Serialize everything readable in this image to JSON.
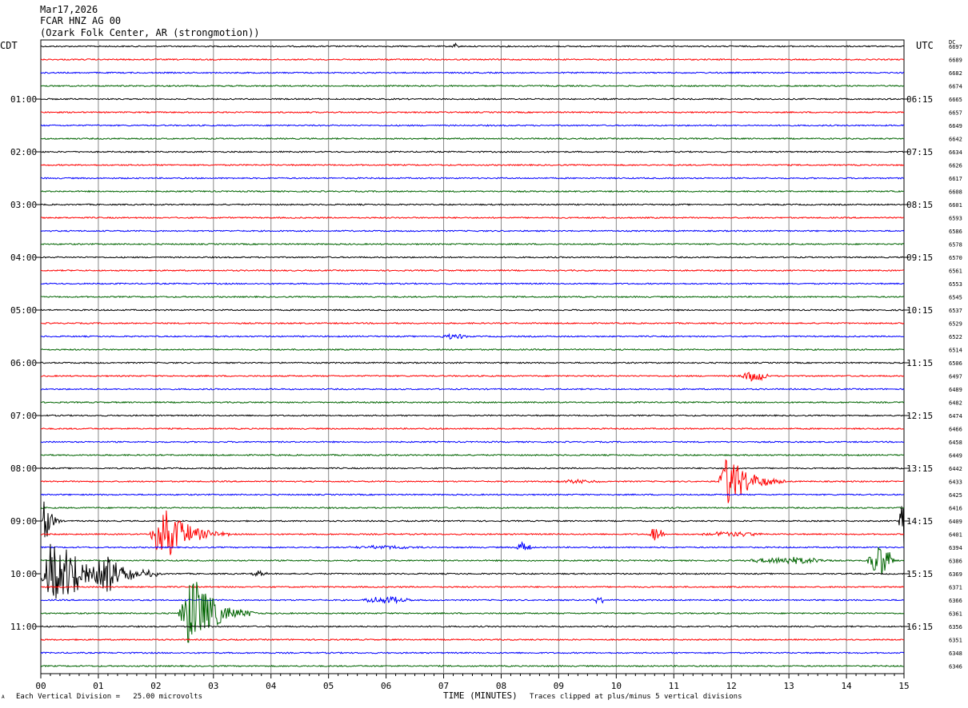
{
  "header": {
    "date": "Mar17,2026",
    "channel": "FCAR HNZ AG 00",
    "station": "(Ozark Folk Center, AR (strongmotion))"
  },
  "tz_left": "CDT",
  "tz_right": "UTC",
  "dc_label": "DC",
  "footer": {
    "scale_note": "Each Vertical Division =   25.00 microvolts",
    "clip_note": "Traces clipped at plus/minus 5 vertical divisions",
    "corner_mark": "A"
  },
  "chart_data": {
    "type": "line",
    "title": "",
    "xlabel": "TIME (MINUTES)",
    "ylabel": "",
    "xlim": [
      0,
      15
    ],
    "x_ticks": [
      "00",
      "01",
      "02",
      "03",
      "04",
      "05",
      "06",
      "07",
      "08",
      "09",
      "10",
      "11",
      "12",
      "13",
      "14",
      "15"
    ],
    "trace_colors": [
      "#000000",
      "#ff0000",
      "#0000ff",
      "#006400"
    ],
    "num_traces": 48,
    "minutes_per_trace": 15,
    "left_time_labels": [
      "01:00",
      "02:00",
      "03:00",
      "04:00",
      "05:00",
      "06:00",
      "07:00",
      "08:00",
      "09:00",
      "10:00",
      "11:00"
    ],
    "right_time_labels": [
      "06:15",
      "07:15",
      "08:15",
      "09:15",
      "10:15",
      "11:15",
      "12:15",
      "13:15",
      "14:15",
      "15:15",
      "16:15"
    ],
    "dc_offsets": [
      "6697",
      "6689",
      "6682",
      "6674",
      "6665",
      "6657",
      "6649",
      "6642",
      "6634",
      "6626",
      "6617",
      "6608",
      "6601",
      "6593",
      "6586",
      "6578",
      "6570",
      "6561",
      "6553",
      "6545",
      "6537",
      "6529",
      "6522",
      "6514",
      "6506",
      "6497",
      "6489",
      "6482",
      "6474",
      "6466",
      "6458",
      "6449",
      "6442",
      "6433",
      "6425",
      "6416",
      "6409",
      "6401",
      "6394",
      "6386",
      "6369",
      "6371",
      "6366",
      "6361",
      "6356",
      "6351",
      "6348",
      "6346"
    ],
    "events": [
      {
        "trace": 0,
        "minute": 7.2,
        "duration": 0.15,
        "amplitude": 4,
        "shape": "burst"
      },
      {
        "trace": 22,
        "minute": 7.2,
        "duration": 0.6,
        "amplitude": 3,
        "shape": "burst"
      },
      {
        "trace": 25,
        "minute": 12.4,
        "duration": 0.6,
        "amplitude": 6,
        "shape": "burst"
      },
      {
        "trace": 33,
        "minute": 11.85,
        "duration": 0.7,
        "amplitude": 50,
        "shape": "quake"
      },
      {
        "trace": 33,
        "minute": 9.3,
        "duration": 1.0,
        "amplitude": 2,
        "shape": "burst"
      },
      {
        "trace": 37,
        "minute": 2.0,
        "duration": 0.8,
        "amplitude": 55,
        "shape": "quake"
      },
      {
        "trace": 37,
        "minute": 10.7,
        "duration": 0.3,
        "amplitude": 10,
        "shape": "burst"
      },
      {
        "trace": 37,
        "minute": 12.0,
        "duration": 1.2,
        "amplitude": 3,
        "shape": "burst"
      },
      {
        "trace": 38,
        "minute": 8.4,
        "duration": 0.3,
        "amplitude": 8,
        "shape": "burst"
      },
      {
        "trace": 38,
        "minute": 6.0,
        "duration": 1.5,
        "amplitude": 2,
        "shape": "burst"
      },
      {
        "trace": 39,
        "minute": 14.6,
        "duration": 0.5,
        "amplitude": 20,
        "shape": "burst"
      },
      {
        "trace": 39,
        "minute": 13.0,
        "duration": 1.6,
        "amplitude": 4,
        "shape": "burst"
      },
      {
        "trace": 36,
        "minute": 15.0,
        "duration": 0.2,
        "amplitude": 35,
        "shape": "burst"
      },
      {
        "trace": 36,
        "minute": 0.05,
        "duration": 0.2,
        "amplitude": 45,
        "shape": "quake"
      },
      {
        "trace": 40,
        "minute": 0.1,
        "duration": 1.2,
        "amplitude": 60,
        "shape": "quake"
      },
      {
        "trace": 40,
        "minute": 1.0,
        "duration": 0.7,
        "amplitude": 35,
        "shape": "quake"
      },
      {
        "trace": 40,
        "minute": 3.8,
        "duration": 0.3,
        "amplitude": 4,
        "shape": "burst"
      },
      {
        "trace": 42,
        "minute": 6.0,
        "duration": 1.0,
        "amplitude": 4,
        "shape": "burst"
      },
      {
        "trace": 42,
        "minute": 9.7,
        "duration": 0.3,
        "amplitude": 4,
        "shape": "burst"
      },
      {
        "trace": 43,
        "minute": 2.5,
        "duration": 0.8,
        "amplitude": 70,
        "shape": "quake"
      }
    ]
  }
}
